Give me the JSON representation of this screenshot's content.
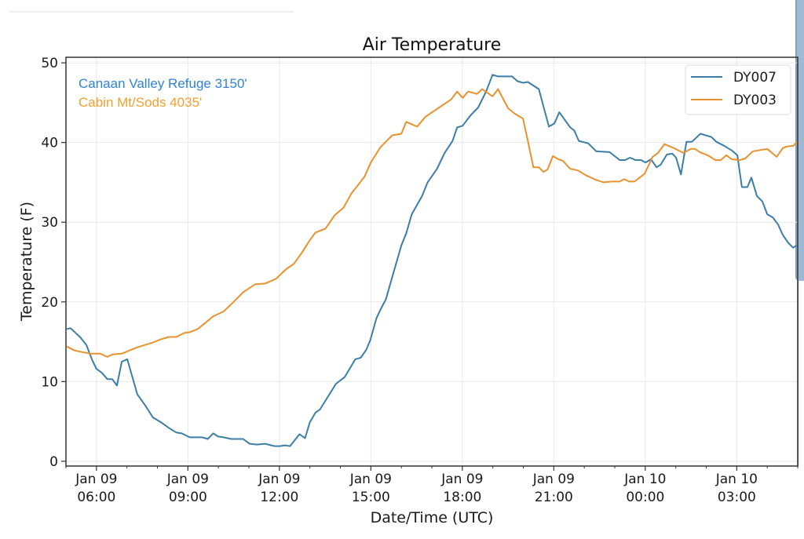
{
  "chart_data": {
    "type": "line",
    "title": "Air Temperature",
    "xlabel": "Date/Time (UTC)",
    "ylabel": "Temperature (F)",
    "x_units": "hours since Jan 09 00:00 UTC",
    "xlim": [
      5.0,
      29.0
    ],
    "ylim": [
      -0.6,
      50.7
    ],
    "grid": true,
    "legend_position": "top-right",
    "x_ticks": [
      {
        "at": 6,
        "label_line1": "Jan 09",
        "label_line2": "06:00"
      },
      {
        "at": 9,
        "label_line1": "Jan 09",
        "label_line2": "09:00"
      },
      {
        "at": 12,
        "label_line1": "Jan 09",
        "label_line2": "12:00"
      },
      {
        "at": 15,
        "label_line1": "Jan 09",
        "label_line2": "15:00"
      },
      {
        "at": 18,
        "label_line1": "Jan 09",
        "label_line2": "18:00"
      },
      {
        "at": 21,
        "label_line1": "Jan 09",
        "label_line2": "21:00"
      },
      {
        "at": 24,
        "label_line1": "Jan 10",
        "label_line2": "00:00"
      },
      {
        "at": 27,
        "label_line1": "Jan 10",
        "label_line2": "03:00"
      }
    ],
    "x_minor_ticks": [
      5,
      7,
      8,
      10,
      11,
      13,
      14,
      16,
      17,
      19,
      20,
      22,
      23,
      25,
      26,
      28,
      29
    ],
    "y_ticks": [
      0,
      10,
      20,
      30,
      40,
      50
    ],
    "annotations": [
      {
        "text": "Canaan Valley Refuge 3150'",
        "color": "#2f83d6"
      },
      {
        "text": "Cabin Mt/Sods 4035'",
        "color": "#f0a030"
      }
    ],
    "series": [
      {
        "name": "DY007",
        "color": "#3b7ea8",
        "points": [
          [
            5.03,
            16.6
          ],
          [
            5.15,
            16.7
          ],
          [
            5.46,
            15.6
          ],
          [
            5.67,
            14.6
          ],
          [
            5.85,
            12.8
          ],
          [
            6.0,
            11.6
          ],
          [
            6.18,
            11.1
          ],
          [
            6.36,
            10.3
          ],
          [
            6.52,
            10.3
          ],
          [
            6.67,
            9.5
          ],
          [
            6.83,
            12.5
          ],
          [
            7.01,
            12.8
          ],
          [
            7.34,
            8.4
          ],
          [
            7.6,
            7.0
          ],
          [
            7.85,
            5.5
          ],
          [
            8.11,
            4.9
          ],
          [
            8.37,
            4.2
          ],
          [
            8.62,
            3.6
          ],
          [
            8.8,
            3.5
          ],
          [
            9.06,
            3.0
          ],
          [
            9.21,
            3.0
          ],
          [
            9.47,
            3.0
          ],
          [
            9.65,
            2.8
          ],
          [
            9.83,
            3.5
          ],
          [
            9.99,
            3.1
          ],
          [
            10.17,
            3.0
          ],
          [
            10.42,
            2.8
          ],
          [
            10.81,
            2.8
          ],
          [
            11.02,
            2.2
          ],
          [
            11.27,
            2.1
          ],
          [
            11.53,
            2.2
          ],
          [
            11.84,
            1.9
          ],
          [
            12.02,
            1.9
          ],
          [
            12.17,
            2.0
          ],
          [
            12.35,
            1.9
          ],
          [
            12.66,
            3.4
          ],
          [
            12.84,
            2.9
          ],
          [
            13.0,
            4.9
          ],
          [
            13.18,
            6.1
          ],
          [
            13.33,
            6.5
          ],
          [
            13.69,
            8.7
          ],
          [
            13.85,
            9.7
          ],
          [
            14.15,
            10.6
          ],
          [
            14.49,
            12.8
          ],
          [
            14.67,
            13.0
          ],
          [
            14.85,
            14.0
          ],
          [
            14.98,
            15.2
          ],
          [
            15.18,
            17.9
          ],
          [
            15.31,
            19.0
          ],
          [
            15.49,
            20.3
          ],
          [
            15.7,
            23.1
          ],
          [
            16.0,
            27.1
          ],
          [
            16.16,
            28.6
          ],
          [
            16.34,
            31.0
          ],
          [
            16.68,
            33.3
          ],
          [
            16.86,
            35.0
          ],
          [
            17.17,
            36.7
          ],
          [
            17.42,
            38.7
          ],
          [
            17.68,
            40.2
          ],
          [
            17.83,
            41.9
          ],
          [
            18.01,
            42.1
          ],
          [
            18.27,
            43.4
          ],
          [
            18.52,
            44.4
          ],
          [
            18.78,
            46.4
          ],
          [
            18.99,
            48.5
          ],
          [
            19.17,
            48.3
          ],
          [
            19.63,
            48.3
          ],
          [
            19.81,
            47.7
          ],
          [
            19.99,
            47.5
          ],
          [
            20.15,
            47.6
          ],
          [
            20.51,
            46.7
          ],
          [
            20.84,
            42.0
          ],
          [
            21.02,
            42.4
          ],
          [
            21.18,
            43.8
          ],
          [
            21.54,
            41.9
          ],
          [
            21.67,
            41.5
          ],
          [
            21.82,
            40.2
          ],
          [
            22.13,
            39.9
          ],
          [
            22.39,
            38.9
          ],
          [
            22.83,
            38.8
          ],
          [
            23.16,
            37.8
          ],
          [
            23.34,
            37.8
          ],
          [
            23.5,
            38.1
          ],
          [
            23.68,
            37.8
          ],
          [
            23.86,
            37.8
          ],
          [
            24.01,
            37.5
          ],
          [
            24.19,
            37.9
          ],
          [
            24.37,
            36.9
          ],
          [
            24.5,
            37.2
          ],
          [
            24.71,
            38.5
          ],
          [
            24.89,
            38.6
          ],
          [
            25.01,
            38.1
          ],
          [
            25.17,
            36.0
          ],
          [
            25.35,
            40.1
          ],
          [
            25.53,
            40.1
          ],
          [
            25.81,
            41.1
          ],
          [
            26.17,
            40.7
          ],
          [
            26.33,
            40.1
          ],
          [
            26.58,
            39.6
          ],
          [
            26.84,
            39.0
          ],
          [
            27.02,
            38.4
          ],
          [
            27.17,
            34.4
          ],
          [
            27.35,
            34.4
          ],
          [
            27.48,
            35.6
          ],
          [
            27.66,
            33.3
          ],
          [
            27.84,
            32.6
          ],
          [
            28.0,
            31.0
          ],
          [
            28.18,
            30.6
          ],
          [
            28.36,
            29.7
          ],
          [
            28.51,
            28.4
          ],
          [
            28.69,
            27.4
          ],
          [
            28.85,
            26.8
          ],
          [
            28.97,
            27.1
          ]
        ]
      },
      {
        "name": "DY003",
        "color": "#e8922e",
        "points": [
          [
            5.03,
            14.4
          ],
          [
            5.28,
            13.9
          ],
          [
            5.54,
            13.7
          ],
          [
            5.8,
            13.5
          ],
          [
            6.13,
            13.5
          ],
          [
            6.36,
            13.1
          ],
          [
            6.52,
            13.4
          ],
          [
            6.83,
            13.5
          ],
          [
            7.08,
            13.9
          ],
          [
            7.34,
            14.3
          ],
          [
            7.6,
            14.6
          ],
          [
            7.85,
            14.9
          ],
          [
            8.11,
            15.3
          ],
          [
            8.37,
            15.6
          ],
          [
            8.62,
            15.6
          ],
          [
            8.88,
            16.1
          ],
          [
            9.06,
            16.2
          ],
          [
            9.32,
            16.6
          ],
          [
            9.58,
            17.4
          ],
          [
            9.83,
            18.2
          ],
          [
            10.17,
            18.8
          ],
          [
            10.5,
            20.0
          ],
          [
            10.81,
            21.2
          ],
          [
            11.2,
            22.2
          ],
          [
            11.53,
            22.3
          ],
          [
            11.89,
            22.9
          ],
          [
            12.22,
            24.1
          ],
          [
            12.48,
            24.8
          ],
          [
            12.74,
            26.2
          ],
          [
            12.99,
            27.7
          ],
          [
            13.18,
            28.7
          ],
          [
            13.51,
            29.2
          ],
          [
            13.82,
            30.9
          ],
          [
            14.1,
            31.8
          ],
          [
            14.36,
            33.6
          ],
          [
            14.79,
            35.7
          ],
          [
            15.0,
            37.5
          ],
          [
            15.31,
            39.4
          ],
          [
            15.7,
            40.9
          ],
          [
            16.0,
            41.1
          ],
          [
            16.16,
            42.6
          ],
          [
            16.52,
            42.0
          ],
          [
            16.78,
            43.2
          ],
          [
            17.24,
            44.4
          ],
          [
            17.63,
            45.4
          ],
          [
            17.83,
            46.4
          ],
          [
            18.01,
            45.6
          ],
          [
            18.19,
            46.4
          ],
          [
            18.48,
            46.1
          ],
          [
            18.65,
            46.7
          ],
          [
            18.99,
            45.8
          ],
          [
            19.17,
            46.7
          ],
          [
            19.5,
            44.3
          ],
          [
            19.73,
            43.6
          ],
          [
            19.99,
            43.0
          ],
          [
            20.15,
            40.2
          ],
          [
            20.33,
            36.9
          ],
          [
            20.51,
            36.9
          ],
          [
            20.66,
            36.3
          ],
          [
            20.79,
            36.6
          ],
          [
            20.97,
            38.3
          ],
          [
            21.15,
            37.9
          ],
          [
            21.3,
            37.7
          ],
          [
            21.54,
            36.7
          ],
          [
            21.79,
            36.5
          ],
          [
            22.05,
            35.9
          ],
          [
            22.39,
            35.3
          ],
          [
            22.64,
            35.0
          ],
          [
            22.9,
            35.1
          ],
          [
            23.16,
            35.1
          ],
          [
            23.31,
            35.4
          ],
          [
            23.47,
            35.1
          ],
          [
            23.65,
            35.1
          ],
          [
            23.98,
            36.1
          ],
          [
            24.24,
            38.2
          ],
          [
            24.42,
            38.7
          ],
          [
            24.63,
            39.8
          ],
          [
            24.94,
            39.3
          ],
          [
            25.25,
            38.7
          ],
          [
            25.5,
            39.2
          ],
          [
            25.63,
            39.2
          ],
          [
            25.79,
            38.8
          ],
          [
            26.05,
            38.4
          ],
          [
            26.3,
            37.8
          ],
          [
            26.48,
            37.8
          ],
          [
            26.66,
            38.4
          ],
          [
            26.84,
            37.9
          ],
          [
            27.1,
            37.8
          ],
          [
            27.28,
            38.0
          ],
          [
            27.53,
            38.9
          ],
          [
            28.0,
            39.2
          ],
          [
            28.31,
            38.2
          ],
          [
            28.51,
            39.3
          ],
          [
            28.64,
            39.5
          ],
          [
            28.87,
            39.6
          ],
          [
            28.97,
            40.1
          ]
        ]
      }
    ]
  }
}
